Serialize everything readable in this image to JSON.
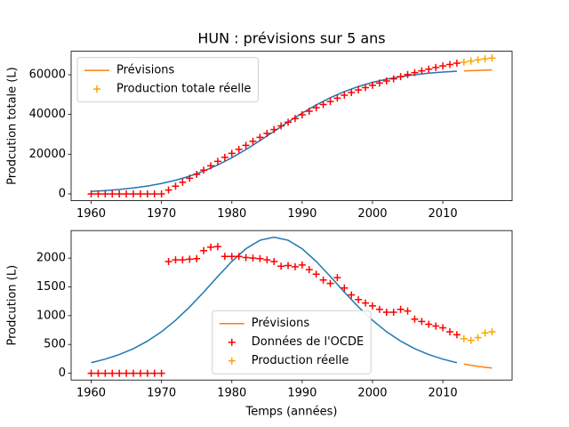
{
  "chart_data": [
    {
      "type": "line",
      "title": "HUN : prévisions sur 5 ans",
      "ylabel": "Prodcution totale (L)",
      "xlim": [
        1957.15,
        2019.85
      ],
      "xticks": [
        1960,
        1970,
        1980,
        1990,
        2000,
        2010
      ],
      "ylim": [
        -3420,
        71820
      ],
      "yticks": [
        0,
        20000,
        40000,
        60000
      ],
      "legend": "upper left",
      "series": [
        {
          "color": "#1f77b4",
          "linestyle": "-",
          "x": [
            1960,
            1962,
            1964,
            1966,
            1968,
            1970,
            1972,
            1974,
            1976,
            1978,
            1980,
            1982,
            1984,
            1986,
            1988,
            1990,
            1992,
            1994,
            1996,
            1998,
            2000,
            2002,
            2004,
            2006,
            2008,
            2010,
            2012
          ],
          "values": [
            1247,
            1676,
            2243,
            2986,
            3969,
            5242,
            6873,
            8940,
            11491,
            14585,
            18213,
            22321,
            26813,
            31500,
            36187,
            40679,
            44787,
            48415,
            51509,
            54060,
            56127,
            57758,
            59031,
            60014,
            60757,
            61324,
            61753
          ]
        },
        {
          "name": "Prévisions",
          "color": "#ff7f0e",
          "linestyle": "-",
          "x": [
            2013,
            2015,
            2017
          ],
          "values": [
            61921,
            62197,
            62403
          ]
        },
        {
          "color": "#ff0000",
          "marker": "+",
          "x": [
            1960,
            1961,
            1962,
            1963,
            1964,
            1965,
            1966,
            1967,
            1968,
            1969,
            1970,
            1971,
            1972,
            1973,
            1974,
            1975,
            1976,
            1977,
            1978,
            1979,
            1980,
            1981,
            1982,
            1983,
            1984,
            1985,
            1986,
            1987,
            1988,
            1989,
            1990,
            1991,
            1992,
            1993,
            1994,
            1995,
            1996,
            1997,
            1998,
            1999,
            2000,
            2001,
            2002,
            2003,
            2004,
            2005,
            2006,
            2007,
            2008,
            2009,
            2010,
            2011,
            2012
          ],
          "values": [
            0,
            0,
            0,
            0,
            0,
            0,
            0,
            0,
            0,
            0,
            0,
            1940,
            3910,
            5880,
            7860,
            9850,
            11980,
            14170,
            16370,
            18400,
            20430,
            22460,
            24470,
            26470,
            28460,
            30430,
            32370,
            34230,
            36100,
            37950,
            39830,
            41630,
            43350,
            44970,
            46530,
            48190,
            49670,
            51030,
            52310,
            53530,
            54700,
            55810,
            56870,
            57930,
            59040,
            60120,
            61060,
            61960,
            62810,
            63630,
            64420,
            65140,
            65810
          ]
        },
        {
          "name": "Production totale réelle",
          "color": "#ffa500",
          "marker": "+",
          "x": [
            2013,
            2014,
            2015,
            2016,
            2017
          ],
          "values": [
            66300,
            66900,
            67500,
            68000,
            68400
          ]
        }
      ]
    },
    {
      "type": "line",
      "ylabel": "Prodcution (L)",
      "xlabel": "Temps (années)",
      "xlim": [
        1957.15,
        2019.85
      ],
      "xticks": [
        1960,
        1970,
        1980,
        1990,
        2000,
        2010
      ],
      "ylim": [
        -118,
        2478
      ],
      "yticks": [
        0,
        500,
        1000,
        1500,
        2000
      ],
      "legend": "lower center",
      "series": [
        {
          "color": "#1f77b4",
          "linestyle": "-",
          "x": [
            1960,
            1962,
            1964,
            1966,
            1968,
            1970,
            1972,
            1974,
            1976,
            1978,
            1980,
            1982,
            1984,
            1986,
            1988,
            1990,
            1992,
            1994,
            1996,
            1998,
            2000,
            2002,
            2004,
            2006,
            2008,
            2010,
            2012
          ],
          "values": [
            183,
            245,
            324,
            427,
            558,
            721,
            919,
            1151,
            1409,
            1681,
            1942,
            2162,
            2310,
            2363,
            2310,
            2162,
            1942,
            1681,
            1409,
            1151,
            919,
            721,
            558,
            427,
            324,
            245,
            183
          ]
        },
        {
          "name": "Prévisions",
          "color": "#ff7f0e",
          "linestyle": "-",
          "x": [
            2013,
            2015,
            2017
          ],
          "values": [
            159,
            119,
            89
          ]
        },
        {
          "name": "Données de l'OCDE",
          "color": "#ff0000",
          "marker": "+",
          "x": [
            1960,
            1961,
            1962,
            1963,
            1964,
            1965,
            1966,
            1967,
            1968,
            1969,
            1970,
            1971,
            1972,
            1973,
            1974,
            1975,
            1976,
            1977,
            1978,
            1979,
            1980,
            1981,
            1982,
            1983,
            1984,
            1985,
            1986,
            1987,
            1988,
            1989,
            1990,
            1991,
            1992,
            1993,
            1994,
            1995,
            1996,
            1997,
            1998,
            1999,
            2000,
            2001,
            2002,
            2003,
            2004,
            2005,
            2006,
            2007,
            2008,
            2009,
            2010,
            2011,
            2012
          ],
          "values": [
            0,
            0,
            0,
            0,
            0,
            0,
            0,
            0,
            0,
            0,
            0,
            1940,
            1970,
            1970,
            1980,
            1990,
            2130,
            2190,
            2200,
            2030,
            2030,
            2030,
            2010,
            2000,
            1990,
            1970,
            1940,
            1860,
            1870,
            1850,
            1880,
            1800,
            1720,
            1620,
            1560,
            1660,
            1480,
            1360,
            1280,
            1220,
            1170,
            1110,
            1060,
            1060,
            1110,
            1080,
            940,
            900,
            850,
            820,
            790,
            720,
            670
          ]
        },
        {
          "name": "Production réelle",
          "color": "#ffa500",
          "marker": "+",
          "x": [
            2013,
            2014,
            2015,
            2016,
            2017
          ],
          "values": [
            600,
            570,
            620,
            700,
            720
          ]
        }
      ]
    }
  ]
}
